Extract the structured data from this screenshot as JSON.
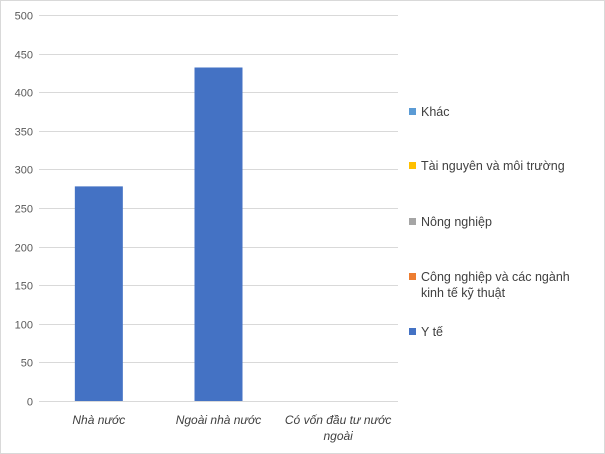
{
  "chart_data": {
    "type": "bar",
    "categories": [
      "Nhà nước",
      "Ngoài nhà nước",
      "Có vốn đầu tư nước ngoài"
    ],
    "series": [
      {
        "name": "Y tế",
        "color": "#4472C4",
        "values": [
          278,
          432,
          0
        ]
      },
      {
        "name": "Công nghiệp và các ngành kinh tế kỹ thuật",
        "color": "#ED7D31",
        "values": [
          0,
          0,
          0
        ]
      },
      {
        "name": "Nông nghiệp",
        "color": "#A5A5A5",
        "values": [
          0,
          0,
          0
        ]
      },
      {
        "name": "Tài nguyên và môi trường",
        "color": "#FFC000",
        "values": [
          0,
          0,
          0
        ]
      },
      {
        "name": "Khác",
        "color": "#5B9BD5",
        "values": [
          0,
          0,
          0
        ]
      }
    ],
    "ylim": [
      0,
      500
    ],
    "yticks": [
      0,
      50,
      100,
      150,
      200,
      250,
      300,
      350,
      400,
      450,
      500
    ],
    "grid": true,
    "legend_position": "right",
    "legend_order": [
      "Khác",
      "Tài nguyên và môi trường",
      "Nông nghiệp",
      "Công nghiệp và các ngành kinh tế kỹ thuật",
      "Y tế"
    ],
    "category_labels_display": [
      [
        "Nhà nước"
      ],
      [
        "Ngoài nhà nước"
      ],
      [
        "Có vốn đầu tư nước",
        "ngoài"
      ]
    ],
    "legend_labels_display": {
      "Khác": [
        "Khác"
      ],
      "Tài nguyên và môi trường": [
        "Tài nguyên và môi trường"
      ],
      "Nông nghiệp": [
        "Nông nghiệp"
      ],
      "Công nghiệp và các ngành kinh tế kỹ thuật": [
        "Công nghiệp và các ngành",
        "kinh tế kỹ thuật"
      ],
      "Y tế": [
        "Y tế"
      ]
    }
  }
}
